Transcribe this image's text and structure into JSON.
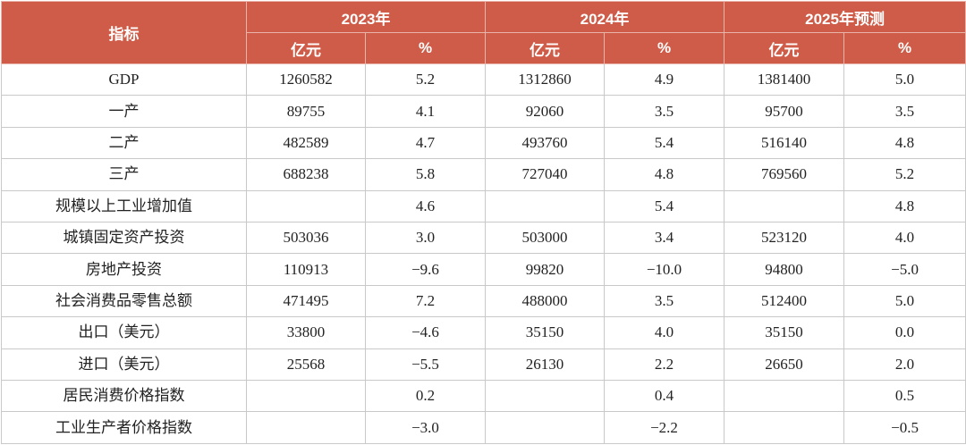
{
  "table": {
    "header": {
      "indicator": "指标",
      "years": [
        "2023年",
        "2024年",
        "2025年预测"
      ],
      "unit_yiyuan": "亿元",
      "unit_pct": "%"
    },
    "rows": [
      {
        "name": "GDP",
        "v": [
          "1260582",
          "5.2",
          "1312860",
          "4.9",
          "1381400",
          "5.0"
        ]
      },
      {
        "name": "一产",
        "v": [
          "89755",
          "4.1",
          "92060",
          "3.5",
          "95700",
          "3.5"
        ]
      },
      {
        "name": "二产",
        "v": [
          "482589",
          "4.7",
          "493760",
          "5.4",
          "516140",
          "4.8"
        ]
      },
      {
        "name": "三产",
        "v": [
          "688238",
          "5.8",
          "727040",
          "4.8",
          "769560",
          "5.2"
        ]
      },
      {
        "name": "规模以上工业增加值",
        "v": [
          "",
          "4.6",
          "",
          "5.4",
          "",
          "4.8"
        ]
      },
      {
        "name": "城镇固定资产投资",
        "v": [
          "503036",
          "3.0",
          "503000",
          "3.4",
          "523120",
          "4.0"
        ]
      },
      {
        "name": "房地产投资",
        "v": [
          "110913",
          "−9.6",
          "99820",
          "−10.0",
          "94800",
          "−5.0"
        ]
      },
      {
        "name": "社会消费品零售总额",
        "v": [
          "471495",
          "7.2",
          "488000",
          "3.5",
          "512400",
          "5.0"
        ]
      },
      {
        "name": "出口（美元）",
        "v": [
          "33800",
          "−4.6",
          "35150",
          "4.0",
          "35150",
          "0.0"
        ]
      },
      {
        "name": "进口（美元）",
        "v": [
          "25568",
          "−5.5",
          "26130",
          "2.2",
          "26650",
          "2.0"
        ]
      },
      {
        "name": "居民消费价格指数",
        "v": [
          "",
          "0.2",
          "",
          "0.4",
          "",
          "0.5"
        ]
      },
      {
        "name": "工业生产者价格指数",
        "v": [
          "",
          "−3.0",
          "",
          "−2.2",
          "",
          "−0.5"
        ]
      }
    ]
  }
}
